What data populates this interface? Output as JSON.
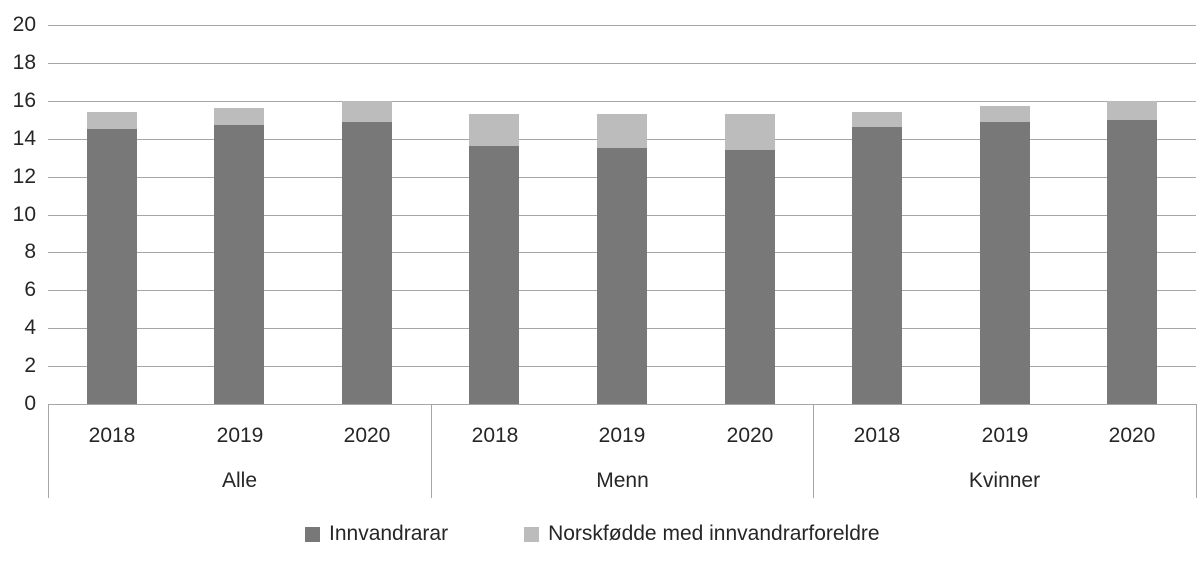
{
  "chart_data": {
    "type": "bar",
    "stacked": true,
    "title": "",
    "xlabel": "",
    "ylabel": "",
    "groups": [
      "Alle",
      "Menn",
      "Kvinner"
    ],
    "years": [
      "2018",
      "2019",
      "2020"
    ],
    "series": [
      {
        "name": "Innvandrarar",
        "color": "#787878",
        "values": [
          [
            14.5,
            14.7,
            14.9
          ],
          [
            13.6,
            13.5,
            13.4
          ],
          [
            14.6,
            14.9,
            15.0
          ]
        ]
      },
      {
        "name": "Norskfødde med innvandrarforeldre",
        "color": "#bcbcbc",
        "values": [
          [
            0.9,
            0.9,
            1.1
          ],
          [
            1.7,
            1.8,
            1.9
          ],
          [
            0.8,
            0.8,
            1.0
          ]
        ]
      }
    ],
    "ylim": [
      0,
      20
    ],
    "yticks": [
      "0",
      "2",
      "4",
      "6",
      "8",
      "10",
      "12",
      "14",
      "16",
      "18",
      "20"
    ],
    "grid": true,
    "legend_position": "bottom"
  },
  "colors": {
    "text": "#262626",
    "gridline": "#a6a6a6",
    "series_dark": "#787878",
    "series_light": "#bcbcbc"
  }
}
